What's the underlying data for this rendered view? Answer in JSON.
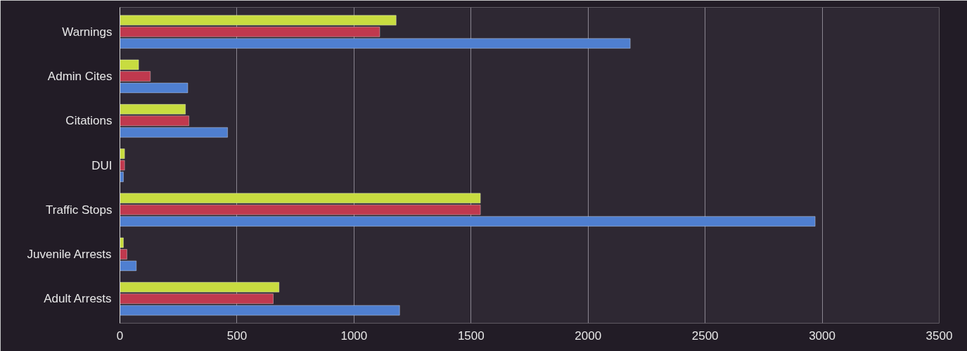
{
  "chart_data": {
    "type": "bar",
    "orientation": "horizontal",
    "categories": [
      "Warnings",
      "Admin Cites",
      "Citations",
      "DUI",
      "Traffic Stops",
      "Juvenile Arrests",
      "Adult Arrests"
    ],
    "series": [
      {
        "color": "#4f7fd0",
        "values": [
          2180,
          290,
          460,
          15,
          2970,
          70,
          1195
        ]
      },
      {
        "color": "#c0394e",
        "values": [
          1110,
          130,
          295,
          20,
          1540,
          30,
          655
        ]
      },
      {
        "color": "#c8dc40",
        "values": [
          1180,
          80,
          280,
          20,
          1540,
          15,
          680
        ]
      }
    ],
    "xlim": [
      0,
      3500
    ],
    "xticks": [
      0,
      500,
      1000,
      1500,
      2000,
      2500,
      3000,
      3500
    ],
    "grid": "x"
  }
}
